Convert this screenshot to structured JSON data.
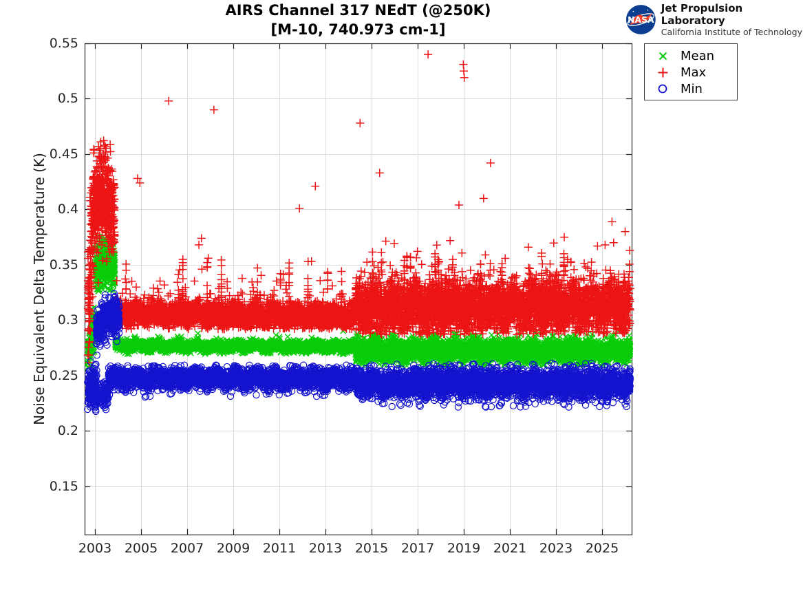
{
  "header": {
    "title_line1": "AIRS Channel 317 NEdT (@250K)",
    "title_line2": "[M-10, 740.973 cm-1]",
    "logo": {
      "nasa_text": "NASA",
      "org_line1": "Jet Propulsion Laboratory",
      "org_line2": "California Institute of Technology",
      "meatball_blue": "#0b3d91",
      "swoosh_red": "#fc3d21"
    }
  },
  "chart_data": {
    "type": "scatter",
    "title": "AIRS Channel 317 NEdT (@250K) [M-10, 740.973 cm-1]",
    "xlabel": "",
    "ylabel": "Noise Equivalent Delta Temperature (K)",
    "xlim": [
      2002.552,
      2026.283
    ],
    "ylim": [
      0.1065,
      0.55
    ],
    "x_ticks": [
      2003,
      2005,
      2007,
      2009,
      2011,
      2013,
      2015,
      2017,
      2019,
      2021,
      2023,
      2025
    ],
    "y_ticks": [
      0.15,
      0.2,
      0.25,
      0.3,
      0.35,
      0.4,
      0.45,
      0.5,
      0.55
    ],
    "grid": true,
    "grid_color": "#dcdcdc",
    "axis_color": "#262626",
    "legend_position": "outside-top-right",
    "seed": 42,
    "series": [
      {
        "name": "Mean",
        "marker": "x",
        "color": "#0acc0a",
        "marker_px": 4.0,
        "bands": [
          {
            "t0": 2002.68,
            "t1": 2003.0,
            "n": 130,
            "c0": 0.27,
            "c1": 0.3,
            "sd": 0.011,
            "lo": 0.256,
            "hi": 0.335
          },
          {
            "t0": 2003.0,
            "t1": 2003.88,
            "n": 380,
            "c0": 0.345,
            "c1": 0.347,
            "bulge": 0.006,
            "sd": 0.0105,
            "lo": 0.326,
            "hi": 0.377
          },
          {
            "t0": 2003.88,
            "t1": 2014.3,
            "n": 3750,
            "c0": 0.2768,
            "c1": 0.2762,
            "sd": 0.0022,
            "wobble": 0.0012,
            "lo": 0.2695,
            "hi": 0.2905,
            "spikeP": 0.003,
            "spikeUp": 0.006,
            "spikeScale": 0.003
          },
          {
            "t0": 2014.3,
            "t1": 2026.22,
            "n": 4300,
            "c0": 0.2728,
            "c1": 0.2722,
            "sd": 0.005,
            "wobble": 0.002,
            "lo": 0.2588,
            "hi": 0.2878
          }
        ],
        "outliers": []
      },
      {
        "name": "Max",
        "marker": "+",
        "color": "#ec1414",
        "marker_px": 6.0,
        "bands": [
          {
            "t0": 2002.68,
            "t1": 2002.96,
            "n": 130,
            "c0": 0.295,
            "c1": 0.405,
            "sd": 0.03,
            "lo": 0.258,
            "hi": 0.452
          },
          {
            "t0": 2002.92,
            "t1": 2003.86,
            "n": 520,
            "c0": 0.398,
            "c1": 0.388,
            "bulge": 0.018,
            "sd": 0.02,
            "lo": 0.3,
            "hi": 0.463
          },
          {
            "t0": 2003.86,
            "t1": 2014.3,
            "n": 3750,
            "c0": 0.3065,
            "c1": 0.3035,
            "sd": 0.0052,
            "wobble": 0.002,
            "lo": 0.292,
            "hi": 0.37,
            "spikeP": 0.022,
            "spikeUp": 0.01,
            "spikeScale": 0.012,
            "burstP": 0.003,
            "burstSpan": 0.05
          },
          {
            "t0": 2014.3,
            "t1": 2026.22,
            "n": 4400,
            "c0": 0.3115,
            "c1": 0.3135,
            "sd": 0.0115,
            "wobble": 0.0035,
            "lo": 0.287,
            "hi": 0.372,
            "spikeP": 0.05,
            "spikeUp": 0.008,
            "spikeScale": 0.011,
            "burstP": 0.004,
            "burstSpan": 0.05
          }
        ],
        "outliers": [
          [
            2003.25,
            0.461
          ],
          [
            2003.4,
            0.458
          ],
          [
            2004.85,
            0.428
          ],
          [
            2004.95,
            0.424
          ],
          [
            2006.2,
            0.498
          ],
          [
            2007.62,
            0.374
          ],
          [
            2008.16,
            0.49
          ],
          [
            2011.87,
            0.401
          ],
          [
            2012.56,
            0.421
          ],
          [
            2014.5,
            0.478
          ],
          [
            2015.35,
            0.433
          ],
          [
            2017.45,
            0.54
          ],
          [
            2018.79,
            0.404
          ],
          [
            2018.98,
            0.531
          ],
          [
            2019.0,
            0.525
          ],
          [
            2019.02,
            0.519
          ],
          [
            2019.86,
            0.41
          ],
          [
            2020.16,
            0.442
          ],
          [
            2021.8,
            0.366
          ],
          [
            2023.36,
            0.375
          ],
          [
            2025.13,
            0.368
          ],
          [
            2025.43,
            0.389
          ],
          [
            2025.5,
            0.37
          ],
          [
            2026.0,
            0.38
          ],
          [
            2026.2,
            0.363
          ]
        ]
      },
      {
        "name": "Min",
        "marker": "o",
        "color": "#1414cf",
        "marker_px": 4.6,
        "bands": [
          {
            "t0": 2002.68,
            "t1": 2003.08,
            "n": 170,
            "c0": 0.2405,
            "c1": 0.2415,
            "sd": 0.0085,
            "lo": 0.2145,
            "hi": 0.2705,
            "dipP": 0.05,
            "dipDown": 0.01,
            "dipScale": 0.006
          },
          {
            "t0": 2002.88,
            "t1": 2003.58,
            "n": 150,
            "c0": 0.2335,
            "c1": 0.2305,
            "sd": 0.0062,
            "lo": 0.2155,
            "hi": 0.252
          },
          {
            "t0": 2003.06,
            "t1": 2004.05,
            "n": 430,
            "c0": 0.29,
            "c1": 0.3,
            "bulge": 0.009,
            "sd": 0.0085,
            "lo": 0.264,
            "hi": 0.3245
          },
          {
            "t0": 2003.58,
            "t1": 2014.3,
            "n": 3650,
            "c0": 0.2478,
            "c1": 0.2472,
            "sd": 0.0042,
            "wobble": 0.0022,
            "lo": 0.2305,
            "hi": 0.2595,
            "dipP": 0.01,
            "dipDown": 0.008,
            "dipScale": 0.005
          },
          {
            "t0": 2014.3,
            "t1": 2026.22,
            "n": 4300,
            "c0": 0.2432,
            "c1": 0.2428,
            "sd": 0.0062,
            "wobble": 0.0025,
            "lo": 0.2215,
            "hi": 0.2618,
            "dipP": 0.012,
            "dipDown": 0.009,
            "dipScale": 0.005
          }
        ],
        "outliers": []
      }
    ]
  }
}
